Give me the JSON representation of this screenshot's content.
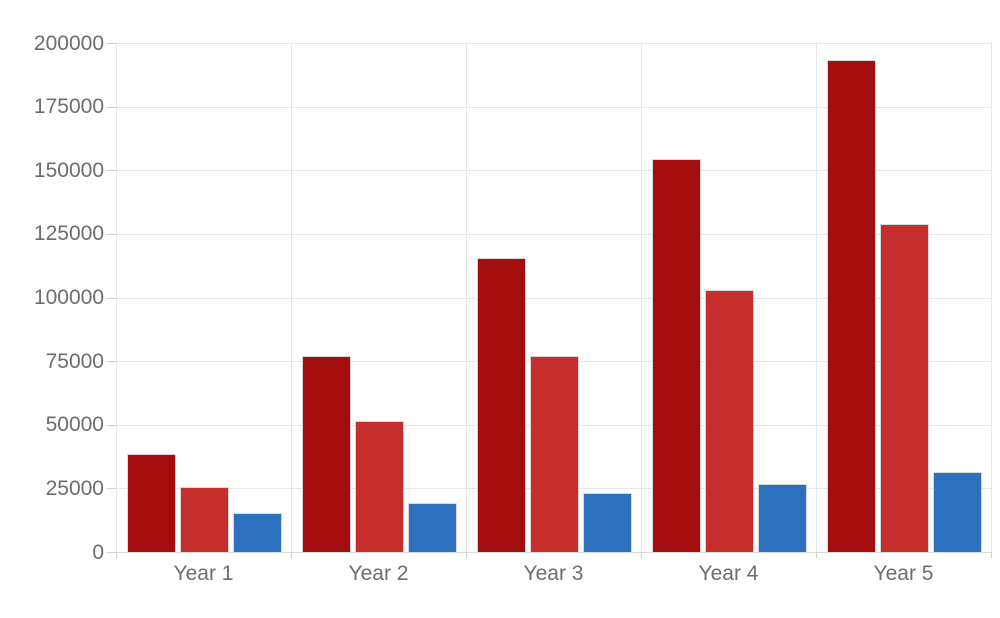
{
  "chart": {
    "background_color": "#ffffff",
    "grid_color": "#e7e7e7",
    "baseline_color": "#d9d9d9",
    "tick_color": "#cfcfcf",
    "label_color": "#6d6d6d",
    "bar_stroke_color": "#d9d9d9"
  },
  "chart_data": {
    "type": "bar",
    "title": "",
    "xlabel": "",
    "ylabel": "",
    "categories": [
      "Year 1",
      "Year 2",
      "Year 3",
      "Year 4",
      "Year 5"
    ],
    "series": [
      {
        "name": "dark-red-series",
        "color": "#a30d0d",
        "values": [
          38500,
          77200,
          115600,
          154500,
          193400
        ]
      },
      {
        "name": "red-series",
        "color": "#c62d2d",
        "values": [
          25400,
          51300,
          77200,
          103000,
          128800
        ]
      },
      {
        "name": "blue-series",
        "color": "#2d70bd",
        "values": [
          15200,
          19400,
          23100,
          26800,
          31600
        ]
      }
    ],
    "ylim": [
      0,
      200000
    ],
    "ytick_step": 25000,
    "ytick_labels": [
      "0",
      "25000",
      "50000",
      "75000",
      "100000",
      "125000",
      "150000",
      "175000",
      "200000"
    ],
    "grid": true,
    "legend_position": "none"
  }
}
